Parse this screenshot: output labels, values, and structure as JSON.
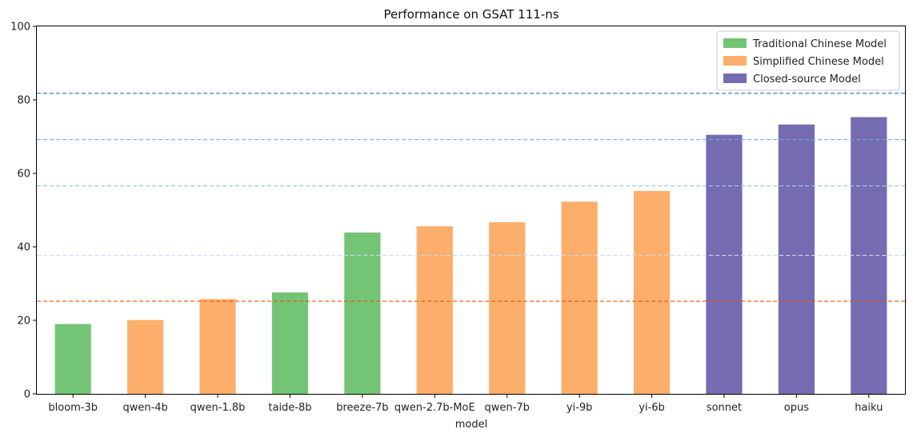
{
  "chart_data": {
    "type": "bar",
    "title": "Performance on GSAT 111-ns",
    "xlabel": "model",
    "ylabel": "",
    "ylim": [
      0,
      100
    ],
    "yticks": [
      0,
      20,
      40,
      60,
      80,
      100
    ],
    "grid": false,
    "legend_position": "top-right",
    "categories": [
      "bloom-3b",
      "qwen-4b",
      "qwen-1.8b",
      "taide-8b",
      "breeze-7b",
      "qwen-2.7b-MoE",
      "qwen-7b",
      "yi-9b",
      "yi-6b",
      "sonnet",
      "opus",
      "haiku"
    ],
    "values": [
      19.0,
      20.1,
      25.8,
      27.6,
      43.9,
      45.6,
      46.7,
      52.3,
      55.2,
      70.5,
      73.3,
      75.3
    ],
    "groups": [
      "traditional",
      "simplified",
      "simplified",
      "traditional",
      "traditional",
      "simplified",
      "simplified",
      "simplified",
      "simplified",
      "closed",
      "closed",
      "closed"
    ],
    "legend": [
      {
        "key": "traditional",
        "label": "Traditional Chinese Model",
        "color": "#74c476"
      },
      {
        "key": "simplified",
        "label": "Simplified Chinese Model",
        "color": "#fdae6b"
      },
      {
        "key": "closed",
        "label": "Closed-source Model",
        "color": "#756bb1"
      }
    ],
    "reference_lines": [
      {
        "value": 81.8,
        "color": "#3182bd"
      },
      {
        "value": 69.2,
        "color": "#6baed6"
      },
      {
        "value": 56.6,
        "color": "#9ecae1"
      },
      {
        "value": 37.7,
        "color": "#c6dbef"
      },
      {
        "value": 25.2,
        "color": "#e6550d"
      }
    ]
  }
}
